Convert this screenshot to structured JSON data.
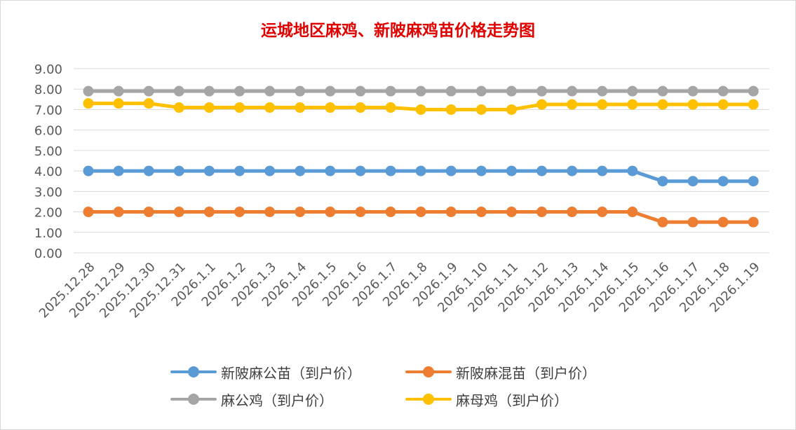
{
  "chart_data": {
    "type": "line",
    "title": "运城地区麻鸡、新陂麻鸡苗价格走势图",
    "categories": [
      "2025.12.28",
      "2025.12.29",
      "2025.12.30",
      "2025.12.31",
      "2026.1.1",
      "2026.1.2",
      "2026.1.3",
      "2026.1.4",
      "2026.1.5",
      "2026.1.6",
      "2026.1.7",
      "2026.1.8",
      "2026.1.9",
      "2026.1.10",
      "2026.1.11",
      "2026.1.12",
      "2026.1.13",
      "2026.1.14",
      "2026.1.15",
      "2026.1.16",
      "2026.1.17",
      "2026.1.18",
      "2026.1.19"
    ],
    "ylim": [
      0,
      9
    ],
    "yticks": [
      "0.00",
      "1.00",
      "2.00",
      "3.00",
      "4.00",
      "5.00",
      "6.00",
      "7.00",
      "8.00",
      "9.00"
    ],
    "grid": true,
    "legend_position": "bottom",
    "series": [
      {
        "name": "新陂麻公苗（到户价）",
        "color": "#5b9bd5",
        "values": [
          4,
          4,
          4,
          4,
          4,
          4,
          4,
          4,
          4,
          4,
          4,
          4,
          4,
          4,
          4,
          4,
          4,
          4,
          4,
          3.5,
          3.5,
          3.5,
          3.5
        ]
      },
      {
        "name": "新陂麻混苗（到户价）",
        "color": "#ed7d31",
        "values": [
          2,
          2,
          2,
          2,
          2,
          2,
          2,
          2,
          2,
          2,
          2,
          2,
          2,
          2,
          2,
          2,
          2,
          2,
          2,
          1.5,
          1.5,
          1.5,
          1.5
        ]
      },
      {
        "name": "麻公鸡（到户价）",
        "color": "#a5a5a5",
        "values": [
          7.9,
          7.9,
          7.9,
          7.9,
          7.9,
          7.9,
          7.9,
          7.9,
          7.9,
          7.9,
          7.9,
          7.9,
          7.9,
          7.9,
          7.9,
          7.9,
          7.9,
          7.9,
          7.9,
          7.9,
          7.9,
          7.9,
          7.9
        ]
      },
      {
        "name": "麻母鸡（到户价）",
        "color": "#ffc000",
        "values": [
          7.3,
          7.3,
          7.3,
          7.1,
          7.1,
          7.1,
          7.1,
          7.1,
          7.1,
          7.1,
          7.1,
          7.0,
          7.0,
          7.0,
          7.0,
          7.25,
          7.25,
          7.25,
          7.25,
          7.25,
          7.25,
          7.25,
          7.25
        ]
      }
    ]
  }
}
